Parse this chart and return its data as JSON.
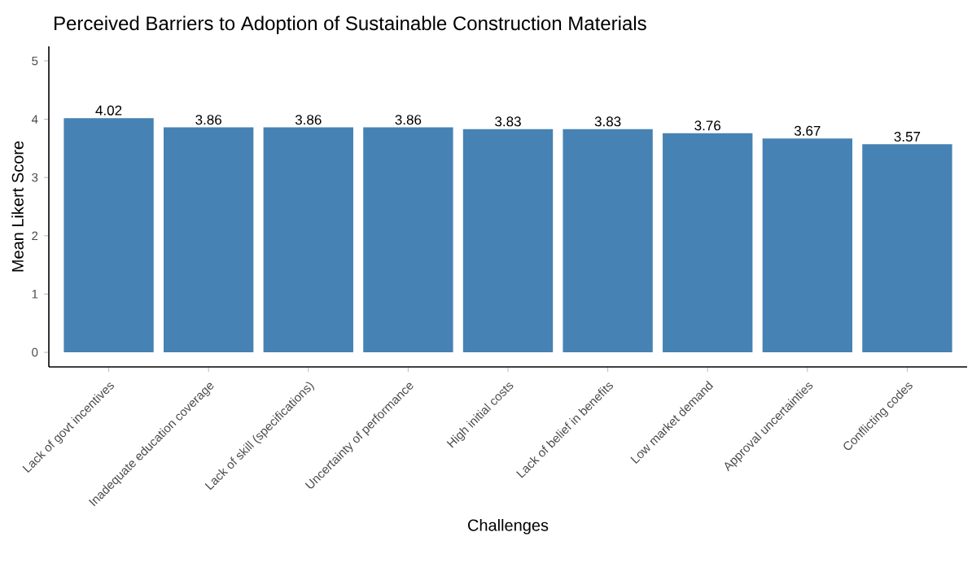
{
  "chart_data": {
    "type": "bar",
    "title": "Perceived Barriers to Adoption of Sustainable Construction Materials",
    "xlabel": "Challenges",
    "ylabel": "Mean Likert Score",
    "categories": [
      "Lack of govt incentives",
      "Inadequate education coverage",
      "Lack of skill (specifications)",
      "Uncertainty of performance",
      "High initial costs",
      "Lack of belief in benefits",
      "Low market demand",
      "Approval uncertainties",
      "Conflicting codes"
    ],
    "values": [
      4.02,
      3.86,
      3.86,
      3.86,
      3.83,
      3.83,
      3.76,
      3.67,
      3.57
    ],
    "color": "#4682b4",
    "ylim": [
      -0.25,
      5.25
    ],
    "yticks": [
      0,
      1,
      2,
      3,
      4,
      5
    ],
    "data_labels": true,
    "grid": false
  }
}
